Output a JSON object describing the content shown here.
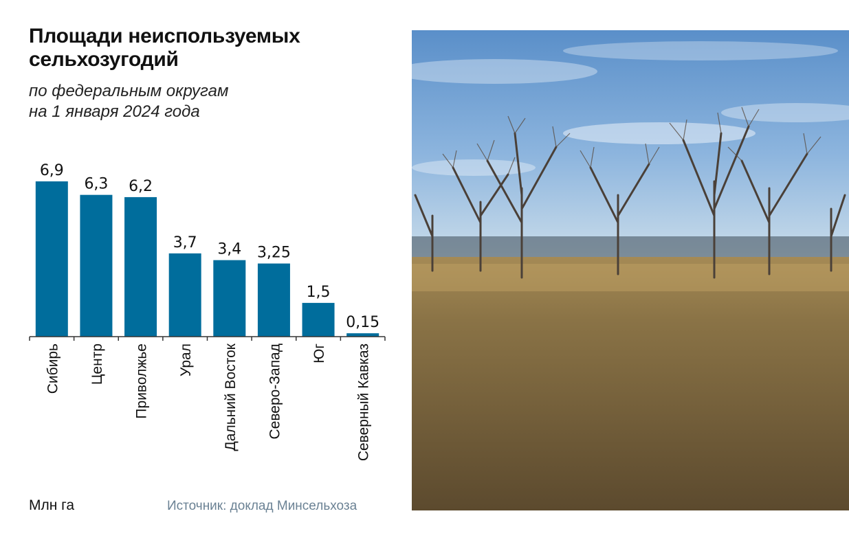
{
  "title_line1": "Площади неиспользуемых",
  "title_line2": "сельхозугодий",
  "subtitle_line1": "по федеральным округам",
  "subtitle_line2": "на 1 января 2024 года",
  "unit_label": "Млн га",
  "source": "Источник: доклад Минсельхоза",
  "colors": {
    "bar": "#006d9c",
    "axis": "#333333",
    "source_text": "#6b8294"
  },
  "chart_data": {
    "type": "bar",
    "title": "Площади неиспользуемых сельхозугодий",
    "subtitle": "по федеральным округам на 1 января 2024 года",
    "ylabel": "Млн га",
    "categories": [
      "Сибирь",
      "Центр",
      "Приволжье",
      "Урал",
      "Дальний Восток",
      "Северо-Запад",
      "Юг",
      "Северный Кавказ"
    ],
    "values": [
      6.9,
      6.3,
      6.2,
      3.7,
      3.4,
      3.25,
      1.5,
      0.15
    ],
    "value_labels": [
      "6,9",
      "6,3",
      "6,2",
      "3,7",
      "3,4",
      "3,25",
      "1,5",
      "0,15"
    ],
    "ylim": [
      0,
      6.9
    ],
    "grid": false,
    "legend": "none"
  },
  "photo": {
    "icon": "photo-bare-trees-field",
    "sky_color": "#6e9fd0",
    "field_color": "#6e5b3c"
  }
}
